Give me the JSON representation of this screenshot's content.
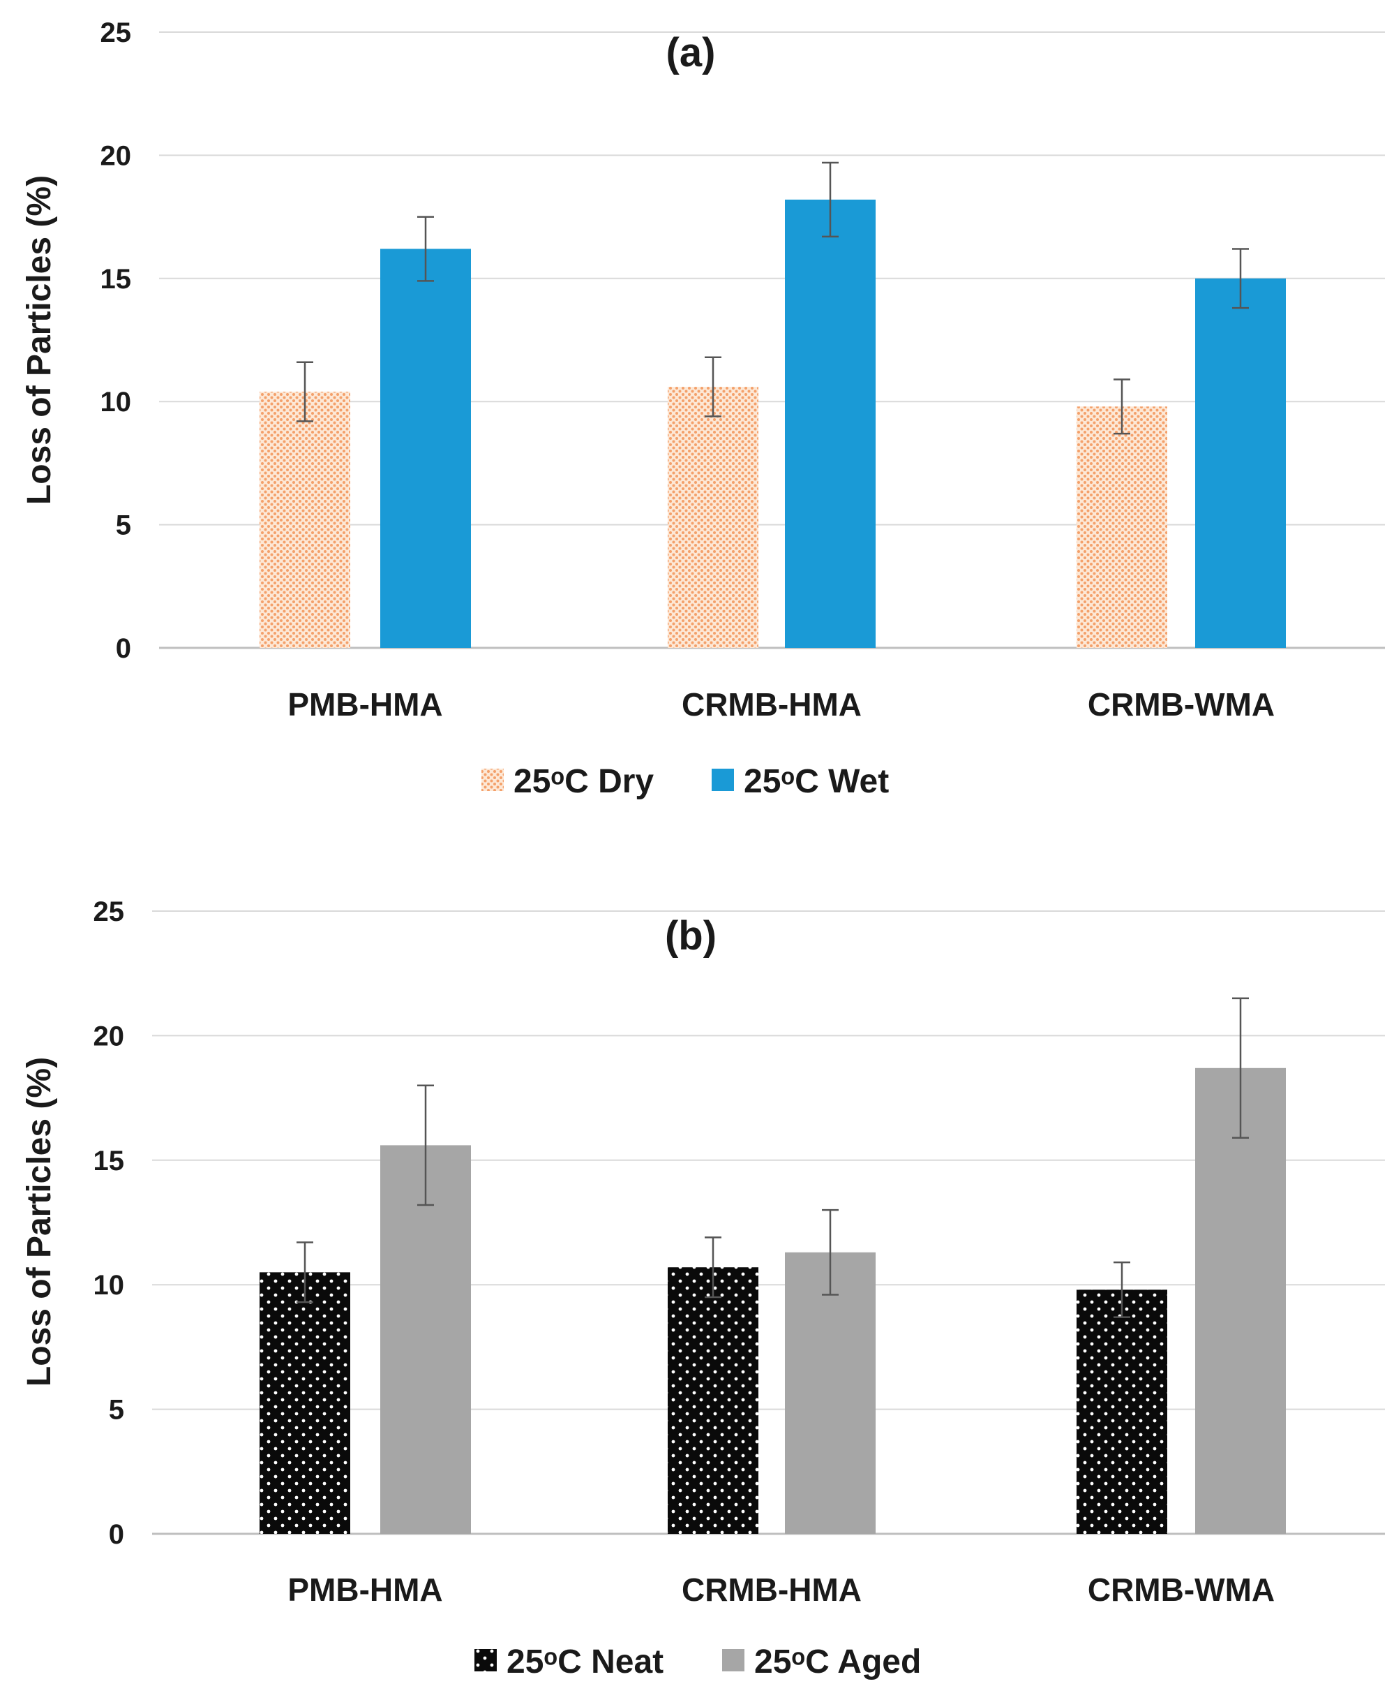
{
  "colors": {
    "dry": "#f4a06a",
    "wet": "#1a9ad6",
    "neat": "#0a0a0a",
    "aged": "#a6a6a6",
    "grid": "#d9d9d9",
    "error": "#555555"
  },
  "chart_data": [
    {
      "type": "bar",
      "title": "(a)",
      "ylabel": "Loss of Particles (%)",
      "xlabel": "",
      "ylim": [
        0,
        25
      ],
      "yticks": [
        "0",
        "5",
        "10",
        "15",
        "20",
        "25"
      ],
      "grid": true,
      "legend_position": "bottom-center",
      "categories": [
        "PMB-HMA",
        "CRMB-HMA",
        "CRMB-WMA"
      ],
      "series": [
        {
          "name": "25ᵒC Dry",
          "style": "dry",
          "values": [
            10.4,
            10.6,
            9.8
          ],
          "errors": [
            1.2,
            1.2,
            1.1
          ]
        },
        {
          "name": "25ᵒC Wet",
          "style": "wet",
          "values": [
            16.2,
            18.2,
            15.0
          ],
          "errors": [
            1.3,
            1.5,
            1.2
          ]
        }
      ]
    },
    {
      "type": "bar",
      "title": "(b)",
      "ylabel": "Loss of Particles (%)",
      "xlabel": "",
      "ylim": [
        0,
        25
      ],
      "yticks": [
        "0",
        "5",
        "10",
        "15",
        "20",
        "25"
      ],
      "grid": true,
      "legend_position": "bottom-center",
      "categories": [
        "PMB-HMA",
        "CRMB-HMA",
        "CRMB-WMA"
      ],
      "series": [
        {
          "name": "25ᵒC Neat",
          "style": "neat",
          "values": [
            10.5,
            10.7,
            9.8
          ],
          "errors": [
            1.2,
            1.2,
            1.1
          ]
        },
        {
          "name": "25ᵒC Aged",
          "style": "aged",
          "values": [
            15.6,
            11.3,
            18.7
          ],
          "errors": [
            2.4,
            1.7,
            2.8
          ]
        }
      ]
    }
  ]
}
